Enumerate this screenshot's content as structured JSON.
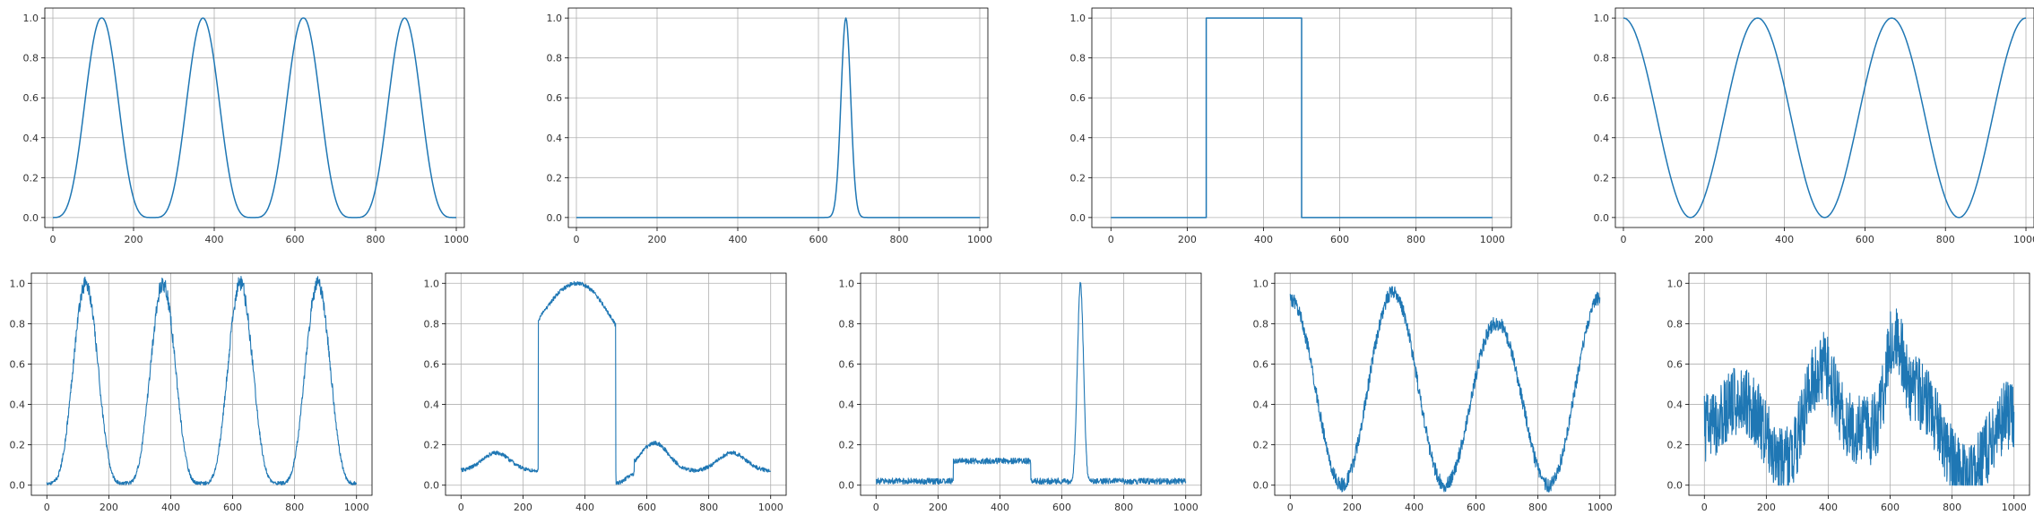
{
  "colors": {
    "line": "#1f77b4",
    "grid": "#b0b0b0",
    "axes": "#000000"
  },
  "chart_data": [
    {
      "type": "line",
      "panel": "row1-1",
      "series_kind": "smooth",
      "generator": "gauss4",
      "x_range": [
        0,
        1000
      ],
      "xlim": [
        -20,
        1020
      ],
      "ylim": [
        -0.05,
        1.05
      ],
      "x_ticks": [
        0,
        200,
        400,
        600,
        800,
        1000
      ],
      "y_ticks": [
        0.0,
        0.2,
        0.4,
        0.6,
        0.8,
        1.0
      ],
      "x_tick_labels": [
        "0",
        "200",
        "400",
        "600",
        "800",
        "1000"
      ],
      "y_tick_labels": [
        "0.0",
        "0.2",
        "0.4",
        "0.6",
        "0.8",
        "1.0"
      ],
      "grid": true,
      "peaks_x": [
        120,
        372,
        622,
        872
      ],
      "peak_y": 1.0,
      "baseline_y": 0.0
    },
    {
      "type": "line",
      "panel": "row1-2",
      "series_kind": "smooth",
      "generator": "narrow_peak",
      "x_range": [
        0,
        1000
      ],
      "xlim": [
        -20,
        1020
      ],
      "ylim": [
        -0.05,
        1.05
      ],
      "x_ticks": [
        0,
        200,
        400,
        600,
        800,
        1000
      ],
      "y_ticks": [
        0.0,
        0.2,
        0.4,
        0.6,
        0.8,
        1.0
      ],
      "x_tick_labels": [
        "0",
        "200",
        "400",
        "600",
        "800",
        "1000"
      ],
      "y_tick_labels": [
        "0.0",
        "0.2",
        "0.4",
        "0.6",
        "0.8",
        "1.0"
      ],
      "grid": true,
      "peaks_x": [
        668
      ],
      "peak_y": 1.0,
      "baseline_y": 0.0
    },
    {
      "type": "line",
      "panel": "row1-3",
      "series_kind": "smooth",
      "generator": "step",
      "x_range": [
        0,
        1000
      ],
      "xlim": [
        -50,
        1050
      ],
      "ylim": [
        -0.05,
        1.05
      ],
      "x_ticks": [
        0,
        200,
        400,
        600,
        800,
        1000
      ],
      "y_ticks": [
        0.0,
        0.2,
        0.4,
        0.6,
        0.8,
        1.0
      ],
      "x_tick_labels": [
        "0",
        "200",
        "400",
        "600",
        "800",
        "1000"
      ],
      "y_tick_labels": [
        "0.0",
        "0.2",
        "0.4",
        "0.6",
        "0.8",
        "1.0"
      ],
      "grid": true,
      "step_start_x": 250,
      "step_end_x": 500,
      "high_y": 1.0,
      "low_y": 0.0
    },
    {
      "type": "line",
      "panel": "row1-4",
      "series_kind": "smooth",
      "generator": "cosine",
      "x_range": [
        0,
        1000
      ],
      "xlim": [
        -20,
        1020
      ],
      "ylim": [
        -0.05,
        1.05
      ],
      "x_ticks": [
        0,
        200,
        400,
        600,
        800,
        1000
      ],
      "y_ticks": [
        0.0,
        0.2,
        0.4,
        0.6,
        0.8,
        1.0
      ],
      "x_tick_labels": [
        "0",
        "200",
        "400",
        "600",
        "800",
        "1000"
      ],
      "y_tick_labels": [
        "0.0",
        "0.2",
        "0.4",
        "0.6",
        "0.8",
        "1.0"
      ],
      "grid": true,
      "maxima_x": [
        0,
        333,
        667,
        1000
      ],
      "minima_x": [
        167,
        500,
        833
      ]
    },
    {
      "type": "line",
      "panel": "row2-1",
      "series_kind": "noisy",
      "generator": "gauss4",
      "x_range": [
        0,
        1000
      ],
      "xlim": [
        -50,
        1050
      ],
      "ylim": [
        -0.05,
        1.05
      ],
      "x_ticks": [
        0,
        200,
        400,
        600,
        800,
        1000
      ],
      "y_ticks": [
        0.0,
        0.2,
        0.4,
        0.6,
        0.8,
        1.0
      ],
      "x_tick_labels": [
        "0",
        "200",
        "400",
        "600",
        "800",
        "1000"
      ],
      "y_tick_labels": [
        "0.0",
        "0.2",
        "0.4",
        "0.6",
        "0.8",
        "1.0"
      ],
      "grid": true,
      "peaks_x": [
        125,
        375,
        625,
        875
      ],
      "peak_y": 1.0,
      "baseline_y": 0.01
    },
    {
      "type": "line",
      "panel": "row2-2",
      "series_kind": "noisy",
      "generator": "step_wave",
      "x_range": [
        0,
        1000
      ],
      "xlim": [
        -50,
        1050
      ],
      "ylim": [
        -0.05,
        1.05
      ],
      "x_ticks": [
        0,
        200,
        400,
        600,
        800,
        1000
      ],
      "y_ticks": [
        0.0,
        0.2,
        0.4,
        0.6,
        0.8,
        1.0
      ],
      "x_tick_labels": [
        "0",
        "200",
        "400",
        "600",
        "800",
        "1000"
      ],
      "y_tick_labels": [
        "0.0",
        "0.2",
        "0.4",
        "0.6",
        "0.8",
        "1.0"
      ],
      "grid": true,
      "step_start_x": 250,
      "step_end_x": 500,
      "step_top_y": [
        0.82,
        1.0,
        0.79
      ],
      "bump_peaks_x": [
        113,
        625,
        875
      ],
      "bump_peaks_y": [
        0.16,
        0.21,
        0.16
      ],
      "baseline_y": 0.07
    },
    {
      "type": "line",
      "panel": "row2-3",
      "series_kind": "noisy",
      "generator": "plateau_peak",
      "x_range": [
        0,
        1000
      ],
      "xlim": [
        -50,
        1050
      ],
      "ylim": [
        -0.05,
        1.05
      ],
      "x_ticks": [
        0,
        200,
        400,
        600,
        800,
        1000
      ],
      "y_ticks": [
        0.0,
        0.2,
        0.4,
        0.6,
        0.8,
        1.0
      ],
      "x_tick_labels": [
        "0",
        "200",
        "400",
        "600",
        "800",
        "1000"
      ],
      "y_tick_labels": [
        "0.0",
        "0.2",
        "0.4",
        "0.6",
        "0.8",
        "1.0"
      ],
      "grid": true,
      "plateau_x": [
        250,
        500
      ],
      "plateau_y": 0.12,
      "peaks_x": [
        660
      ],
      "peak_y": 1.0,
      "baseline_y": 0.02
    },
    {
      "type": "line",
      "panel": "row2-4",
      "series_kind": "noisy",
      "generator": "cosine",
      "x_range": [
        0,
        1000
      ],
      "xlim": [
        -50,
        1050
      ],
      "ylim": [
        -0.05,
        1.05
      ],
      "x_ticks": [
        0,
        200,
        400,
        600,
        800,
        1000
      ],
      "y_ticks": [
        0.0,
        0.2,
        0.4,
        0.6,
        0.8,
        1.0
      ],
      "x_tick_labels": [
        "0",
        "200",
        "400",
        "600",
        "800",
        "1000"
      ],
      "y_tick_labels": [
        "0.0",
        "0.2",
        "0.4",
        "0.6",
        "0.8",
        "1.0"
      ],
      "grid": true,
      "maxima_x": [
        0,
        333,
        667,
        1000
      ],
      "maxima_y": [
        0.92,
        0.96,
        0.8,
        0.93
      ],
      "minima_x": [
        135,
        500,
        833
      ]
    },
    {
      "type": "line",
      "panel": "row2-5",
      "series_kind": "noisy",
      "generator": "random_walk",
      "x_range": [
        0,
        1000
      ],
      "xlim": [
        -50,
        1050
      ],
      "ylim": [
        -0.05,
        1.05
      ],
      "x_ticks": [
        0,
        200,
        400,
        600,
        800,
        1000
      ],
      "y_ticks": [
        0.0,
        0.2,
        0.4,
        0.6,
        0.8,
        1.0
      ],
      "x_tick_labels": [
        "0",
        "200",
        "400",
        "600",
        "800",
        "1000"
      ],
      "y_tick_labels": [
        "0.0",
        "0.2",
        "0.4",
        "0.6",
        "0.8",
        "1.0"
      ],
      "grid": true,
      "max_x": 620,
      "max_y": 1.0
    }
  ]
}
